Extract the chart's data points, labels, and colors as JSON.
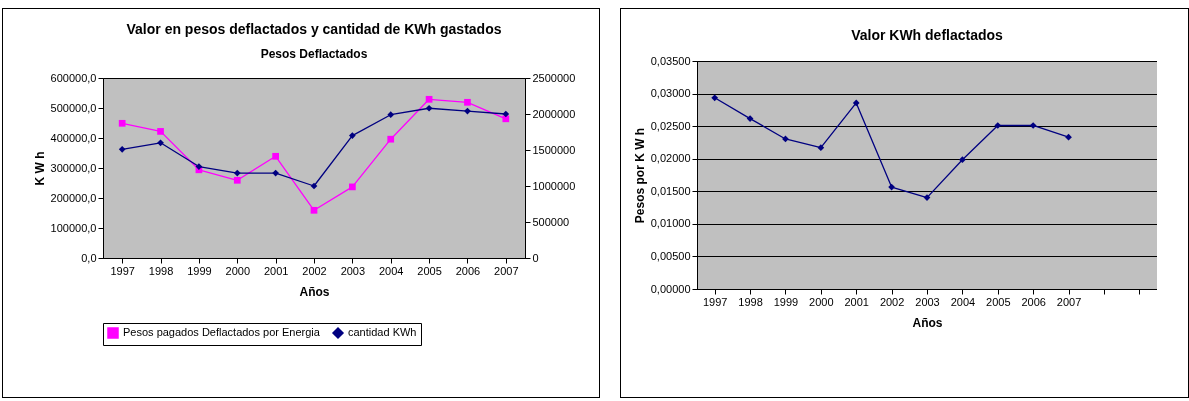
{
  "chart_data": [
    {
      "type": "line",
      "title": "Valor en pesos deflactados y cantidad de KWh gastados",
      "subtitle": "Pesos Deflactados",
      "xlabel": "Años",
      "ylabel": "K W h",
      "categories": [
        "1997",
        "1998",
        "1999",
        "2000",
        "2001",
        "2002",
        "2003",
        "2004",
        "2005",
        "2006",
        "2007"
      ],
      "series": [
        {
          "name": "Pesos pagados Deflactados por Energia",
          "color": "#ff00ff",
          "marker": "square",
          "values": [
            449000,
            422000,
            294000,
            259000,
            339000,
            159000,
            237000,
            396000,
            529000,
            519000,
            464000
          ]
        },
        {
          "name": "cantidad KWh",
          "color": "#000080",
          "marker": "diamond",
          "axis": "y2",
          "values": [
            1510000,
            1600000,
            1270000,
            1180000,
            1180000,
            1000000,
            1700000,
            1990000,
            2080000,
            2040000,
            2000000
          ]
        }
      ],
      "ylim": [
        0,
        600000
      ],
      "yticks": [
        {
          "value": 0,
          "label": "0,0"
        },
        {
          "value": 100000,
          "label": "100000,0"
        },
        {
          "value": 200000,
          "label": "200000,0"
        },
        {
          "value": 300000,
          "label": "300000,0"
        },
        {
          "value": 400000,
          "label": "400000,0"
        },
        {
          "value": 500000,
          "label": "500000,0"
        },
        {
          "value": 600000,
          "label": "600000,0"
        }
      ],
      "y2lim": [
        0,
        2500000
      ],
      "y2ticks": [
        0,
        500000,
        1000000,
        1500000,
        2000000,
        2500000
      ],
      "grid": false,
      "legend": "bottom"
    },
    {
      "type": "line",
      "title": "Valor KWh deflactados",
      "xlabel": "Años",
      "ylabel": "Pesos por K W h",
      "categories": [
        "1997",
        "1998",
        "1999",
        "2000",
        "2001",
        "2002",
        "2003",
        "2004",
        "2005",
        "2006",
        "2007",
        null,
        null
      ],
      "series": [
        {
          "color": "#000080",
          "marker": "diamond",
          "values": [
            0.02935,
            0.02616,
            0.02303,
            0.02169,
            0.02857,
            0.01565,
            0.01403,
            0.01985,
            0.0251,
            0.0251,
            0.02331,
            null,
            null
          ]
        }
      ],
      "ylim": [
        0,
        0.035
      ],
      "yticks": [
        {
          "value": 0,
          "label": "0,00000"
        },
        {
          "value": 0.005,
          "label": "0,00500"
        },
        {
          "value": 0.01,
          "label": "0,01000"
        },
        {
          "value": 0.015,
          "label": "0,01500"
        },
        {
          "value": 0.02,
          "label": "0,02000"
        },
        {
          "value": 0.025,
          "label": "0,02500"
        },
        {
          "value": 0.03,
          "label": "0,03000"
        },
        {
          "value": 0.035,
          "label": "0,03500"
        }
      ],
      "grid": "y"
    }
  ]
}
